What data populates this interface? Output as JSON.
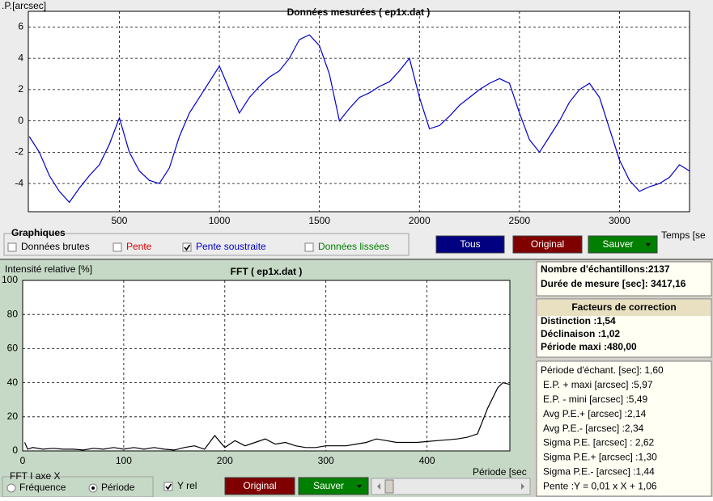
{
  "chart_data": [
    {
      "type": "line",
      "title": "Données mesurées ( ep1x.dat )",
      "y_label": ".P.[arcsec]",
      "x_label": "Temps [se",
      "x": [
        50,
        100,
        150,
        200,
        250,
        300,
        350,
        400,
        450,
        500,
        550,
        600,
        650,
        700,
        750,
        800,
        850,
        900,
        950,
        1000,
        1050,
        1100,
        1150,
        1200,
        1250,
        1300,
        1350,
        1400,
        1450,
        1500,
        1550,
        1600,
        1650,
        1700,
        1750,
        1800,
        1850,
        1900,
        1950,
        2000,
        2050,
        2100,
        2150,
        2200,
        2250,
        2300,
        2350,
        2400,
        2450,
        2500,
        2550,
        2600,
        2650,
        2700,
        2750,
        2800,
        2850,
        2900,
        2950,
        3000,
        3050,
        3100,
        3150,
        3200,
        3250,
        3300,
        3350
      ],
      "series": [
        {
          "color": "#0000cc",
          "values": [
            -1,
            -2,
            -3.5,
            -4.5,
            -5.2,
            -4.3,
            -3.5,
            -2.8,
            -1.5,
            0.2,
            -2,
            -3.2,
            -3.8,
            -4,
            -3,
            -1,
            0.5,
            1.5,
            2.5,
            3.5,
            2,
            0.5,
            1.5,
            2.2,
            2.8,
            3.2,
            4,
            5.2,
            5.5,
            4.8,
            3,
            0,
            0.8,
            1.5,
            1.8,
            2.2,
            2.5,
            3.2,
            4,
            1.5,
            -0.5,
            -0.3,
            0.3,
            1,
            1.5,
            2,
            2.4,
            2.7,
            2.4,
            0.5,
            -1.2,
            -2,
            -1,
            0,
            1.2,
            2,
            2.4,
            1.5,
            -0.5,
            -2.5,
            -3.8,
            -4.5,
            -4.2,
            -4,
            -3.6,
            -2.8,
            -3.2
          ]
        }
      ],
      "xlim": [
        45,
        3350
      ],
      "ylim": [
        -5.8,
        7
      ],
      "xticks": [
        500,
        1000,
        1500,
        2000,
        2500,
        3000
      ],
      "yticks": [
        -4,
        -2,
        0,
        2,
        4,
        6
      ],
      "grid": true
    },
    {
      "type": "line",
      "title": "FFT ( ep1x.dat )",
      "y_label": "Intensité relative [%]",
      "x_label": "Période [sec",
      "x": [
        2,
        5,
        10,
        20,
        30,
        40,
        50,
        60,
        70,
        80,
        90,
        100,
        110,
        120,
        130,
        140,
        150,
        160,
        170,
        180,
        190,
        200,
        210,
        220,
        230,
        240,
        250,
        260,
        270,
        280,
        290,
        300,
        310,
        320,
        330,
        340,
        350,
        360,
        370,
        380,
        390,
        400,
        410,
        420,
        430,
        440,
        450,
        460,
        470,
        475,
        482
      ],
      "series": [
        {
          "color": "#000000",
          "values": [
            5,
            1,
            2,
            1,
            1.5,
            1,
            1,
            0.5,
            1.5,
            1,
            2,
            1,
            2,
            1,
            2,
            1,
            0.5,
            2,
            3,
            1,
            9,
            2,
            6,
            3,
            5,
            7,
            4,
            5,
            3,
            2,
            2,
            3,
            3,
            3,
            4,
            5,
            7,
            6,
            5,
            5,
            5,
            5.5,
            6,
            6.5,
            7,
            8,
            10,
            25,
            37,
            40,
            39
          ]
        }
      ],
      "xlim": [
        0,
        482
      ],
      "ylim": [
        0,
        100
      ],
      "xticks": [
        0,
        100,
        200,
        300,
        400
      ],
      "yticks": [
        0,
        20,
        40,
        60,
        80,
        100
      ],
      "grid": true
    }
  ],
  "controls": {
    "group": "Graphiques",
    "checkboxes": [
      {
        "label": "Données brutes",
        "checked": false,
        "color": "#000000"
      },
      {
        "label": "Pente",
        "checked": false,
        "color": "#e00000"
      },
      {
        "label": "Pente soustraite",
        "checked": true,
        "color": "#0000c0"
      },
      {
        "label": "Données lissées",
        "checked": false,
        "color": "#008000"
      }
    ],
    "buttons": [
      {
        "label": "Tous",
        "color": "#000080"
      },
      {
        "label": "Original",
        "color": "#800000"
      },
      {
        "label": "Sauver",
        "color": "#008000"
      }
    ]
  },
  "stats": {
    "samples": [
      "Nombre d'échantillons:2137",
      "Durée de mesure [sec]: 3417,16"
    ],
    "correction_title": "Facteurs de correction",
    "correction": [
      "Distinction :1,54",
      "Déclinaison :1,02",
      "Période maxi :480,00"
    ],
    "results": [
      "Période d'échant. [sec]: 1,60",
      "E.P. + maxi [arcsec] :5,97",
      "E.P. - mini [arcsec] :5,49",
      "Avg P.E.+ [arcsec] :2,14",
      "Avg P.E.- [arcsec] :2,34",
      "Sigma P.E. [arcsec] : 2,62",
      "Sigma P.E.+ [arcsec] :1,30",
      "Sigma P.E.- [arcsec] :1,44",
      "Pente :Y = 0,01 x X + 1,06"
    ]
  },
  "fft_controls": {
    "group": "FFT I axe X",
    "radios": [
      {
        "label": "Fréquence",
        "checked": false
      },
      {
        "label": "Période",
        "checked": true
      }
    ],
    "checkbox": {
      "label": "Y rel",
      "checked": true
    },
    "buttons": [
      {
        "label": "Original",
        "color": "#800000"
      },
      {
        "label": "Sauver",
        "color": "#008000"
      }
    ]
  }
}
